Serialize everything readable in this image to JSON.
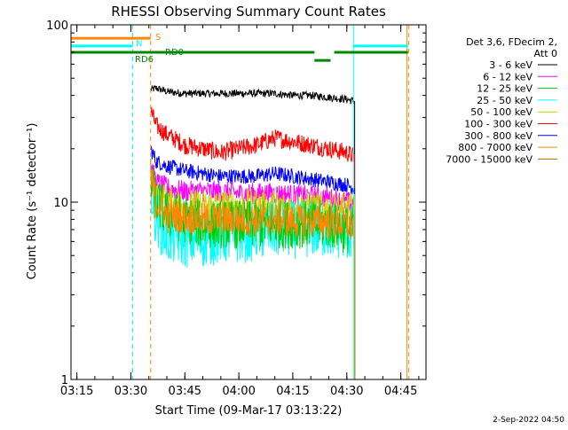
{
  "title": "RHESSI Observing Summary Count Rates",
  "footer_date": "2-Sep-2022 04:50",
  "chart_data": {
    "type": "line",
    "title": "RHESSI Observing Summary Count Rates",
    "xlabel": "Start Time (09-Mar-17 03:13:22)",
    "ylabel": "Count Rate (s⁻¹ detector⁻¹)",
    "yscale": "log",
    "ylim": [
      1,
      100
    ],
    "xlim": [
      "03:13:22",
      "04:52:00"
    ],
    "x_ticks": [
      "03:15",
      "03:30",
      "03:45",
      "04:00",
      "04:15",
      "04:30",
      "04:45"
    ],
    "y_ticks": [
      "1",
      "10",
      "100"
    ],
    "grid": false,
    "legend_position": "right",
    "legend_header": [
      "Det 3,6, FDecim 2,",
      "Att 0"
    ],
    "data_gap_before": "03:35:30",
    "data_gap_after": "04:32:10",
    "series": [
      {
        "name": "3 - 6 keV",
        "color": "#000000",
        "x": [
          "03:35:30",
          "03:37",
          "03:40",
          "03:45",
          "03:50",
          "03:55",
          "04:00",
          "04:05",
          "04:10",
          "04:15",
          "04:20",
          "04:25",
          "04:30",
          "04:32:10"
        ],
        "y": [
          43,
          44,
          42,
          41,
          41,
          41,
          41,
          41,
          41,
          40,
          40,
          39,
          38,
          37
        ]
      },
      {
        "name": "6 - 12 keV",
        "color": "#ff00ff",
        "x": [
          "03:35:30",
          "03:37",
          "03:40",
          "03:45",
          "03:50",
          "03:55",
          "04:00",
          "04:05",
          "04:10",
          "04:15",
          "04:20",
          "04:25",
          "04:30",
          "04:32:10"
        ],
        "y": [
          16,
          13,
          12,
          11.5,
          11.5,
          11.5,
          11.2,
          11.2,
          11.2,
          11,
          10.8,
          10.5,
          10,
          9.8
        ]
      },
      {
        "name": "12 - 25 keV",
        "color": "#00cc00",
        "x": [
          "03:35:30",
          "03:37",
          "03:40",
          "03:45",
          "03:50",
          "03:55",
          "04:00",
          "04:05",
          "04:10",
          "04:15",
          "04:20",
          "04:25",
          "04:30",
          "04:32:10"
        ],
        "y": [
          13,
          10,
          8.5,
          8,
          7.5,
          7.5,
          7.5,
          7.5,
          7.5,
          7.5,
          7.5,
          7.5,
          7,
          7
        ]
      },
      {
        "name": "25 - 50 keV",
        "color": "#00ffff",
        "x": [
          "03:35:30",
          "03:37",
          "03:40",
          "03:45",
          "03:50",
          "03:55",
          "04:00",
          "04:05",
          "04:10",
          "04:15",
          "04:20",
          "04:25",
          "04:30",
          "04:32:10"
        ],
        "y": [
          12,
          8,
          6.5,
          6.2,
          6.2,
          6.5,
          6.5,
          6.8,
          7,
          7,
          7,
          7,
          6.8,
          6.5
        ]
      },
      {
        "name": "50 - 100 keV",
        "color": "#cccc00",
        "x": [
          "03:35:30",
          "03:37",
          "03:40",
          "03:45",
          "03:50",
          "03:55",
          "04:00",
          "04:05",
          "04:10",
          "04:15",
          "04:20",
          "04:25",
          "04:30",
          "04:32:10"
        ],
        "y": [
          14,
          11,
          10,
          9.5,
          9.5,
          9.5,
          9.5,
          9.5,
          9.5,
          9.3,
          9.3,
          9.3,
          9,
          9
        ]
      },
      {
        "name": "100 - 300 keV",
        "color": "#ff0000",
        "x": [
          "03:35:30",
          "03:37",
          "03:40",
          "03:45",
          "03:50",
          "03:55",
          "04:00",
          "04:05",
          "04:10",
          "04:15",
          "04:20",
          "04:25",
          "04:30",
          "04:32:10"
        ],
        "y": [
          33,
          27,
          24,
          21,
          20,
          19,
          20,
          21,
          23,
          22,
          21,
          20,
          19,
          18
        ]
      },
      {
        "name": "300 - 800 keV",
        "color": "#0000ff",
        "x": [
          "03:35:30",
          "03:37",
          "03:40",
          "03:45",
          "03:50",
          "03:55",
          "04:00",
          "04:05",
          "04:10",
          "04:15",
          "04:20",
          "04:25",
          "04:30",
          "04:32:10"
        ],
        "y": [
          20,
          17,
          16,
          15,
          14.5,
          14,
          14,
          14,
          14.5,
          14,
          13.5,
          13,
          12.5,
          12
        ]
      },
      {
        "name": "800 - 7000 keV",
        "color": "#ff8800",
        "x": [
          "03:35:30",
          "03:37",
          "03:40",
          "03:45",
          "03:50",
          "03:55",
          "04:00",
          "04:05",
          "04:10",
          "04:15",
          "04:20",
          "04:25",
          "04:30",
          "04:32:10"
        ],
        "y": [
          14,
          10,
          8.5,
          8.2,
          8,
          8,
          8,
          8,
          8,
          7.8,
          7.8,
          7.8,
          7.5,
          7.2
        ]
      },
      {
        "name": "7000 - 15000 keV",
        "color": "#b36b00",
        "x": [],
        "y": []
      }
    ],
    "annotations": [
      {
        "label": "S",
        "color": "#ff8800",
        "x_start": "03:13:22",
        "x_end": "03:35:30",
        "level": 84
      },
      {
        "label": "N",
        "color": "#00ffff",
        "x_start": "03:13:22",
        "x_end": "03:30:30",
        "level": 76
      },
      {
        "label": "N",
        "color": "#00ffff",
        "x_start": "04:31:50",
        "x_end": "04:47:00",
        "level": 76
      },
      {
        "label": "RD0",
        "color": "#008800",
        "x_start": "03:13:22",
        "x_end": "04:21:00",
        "level": 70
      },
      {
        "label": "",
        "color": "#008800",
        "x_start": "04:21:00",
        "x_end": "04:25:30",
        "level": 63
      },
      {
        "label": "",
        "color": "#008800",
        "x_start": "04:26:30",
        "x_end": "04:47:00",
        "level": 70
      },
      {
        "label": "RD6",
        "color": "#008800",
        "x_start": "",
        "x_end": "",
        "level": 0
      }
    ],
    "vertical_markers": [
      {
        "x": "03:13:22",
        "color": "#00ffff",
        "style": "solid"
      },
      {
        "x": "03:30:30",
        "color": "#00ffff",
        "style": "dashed"
      },
      {
        "x": "03:35:30",
        "color": "#ff8800",
        "style": "dashed"
      },
      {
        "x": "04:31:50",
        "color": "#00ffff",
        "style": "solid"
      },
      {
        "x": "04:46:40",
        "color": "#ff8800",
        "style": "solid"
      },
      {
        "x": "04:47:10",
        "color": "#ff8800",
        "style": "dashed"
      }
    ]
  }
}
